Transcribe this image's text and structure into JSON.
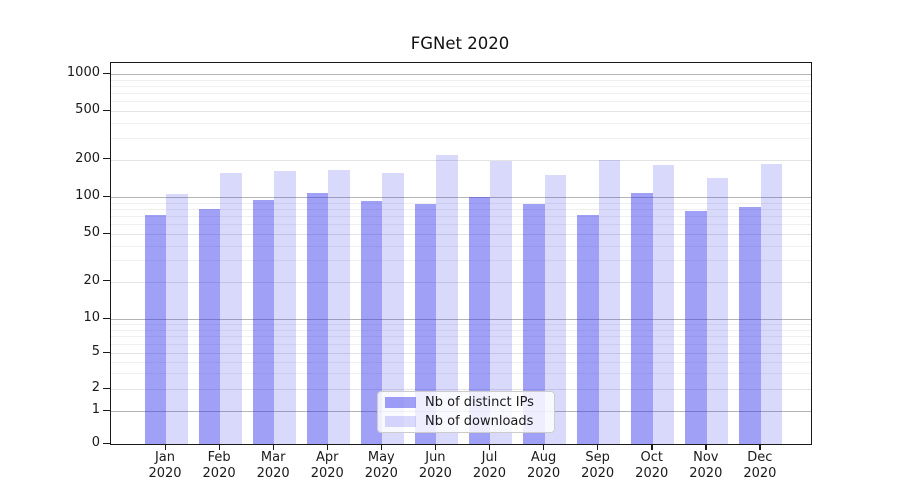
{
  "chart_data": {
    "type": "bar",
    "title": "FGNet 2020",
    "categories": [
      "Jan",
      "Feb",
      "Mar",
      "Apr",
      "May",
      "Jun",
      "Jul",
      "Aug",
      "Sep",
      "Oct",
      "Nov",
      "Dec"
    ],
    "x_tick_second_line": "2020",
    "series": [
      {
        "name": "Nb of distinct IPs",
        "color": "rgba(44,44,238,0.45)",
        "values": [
          72,
          80,
          94,
          107,
          92,
          88,
          100,
          87,
          71,
          108,
          77,
          83
        ]
      },
      {
        "name": "Nb of downloads",
        "color": "rgba(44,44,238,0.18)",
        "values": [
          106,
          156,
          162,
          166,
          157,
          218,
          193,
          150,
          198,
          182,
          143,
          184
        ]
      }
    ],
    "xlabel": "",
    "ylabel": "",
    "yscale": "symlog",
    "y_tick_labels": [
      "0",
      "1",
      "2",
      "5",
      "10",
      "20",
      "50",
      "100",
      "200",
      "500",
      "1000"
    ],
    "ylim": [
      0,
      1200
    ],
    "grid": true,
    "legend_position": "lower center inside plot"
  }
}
